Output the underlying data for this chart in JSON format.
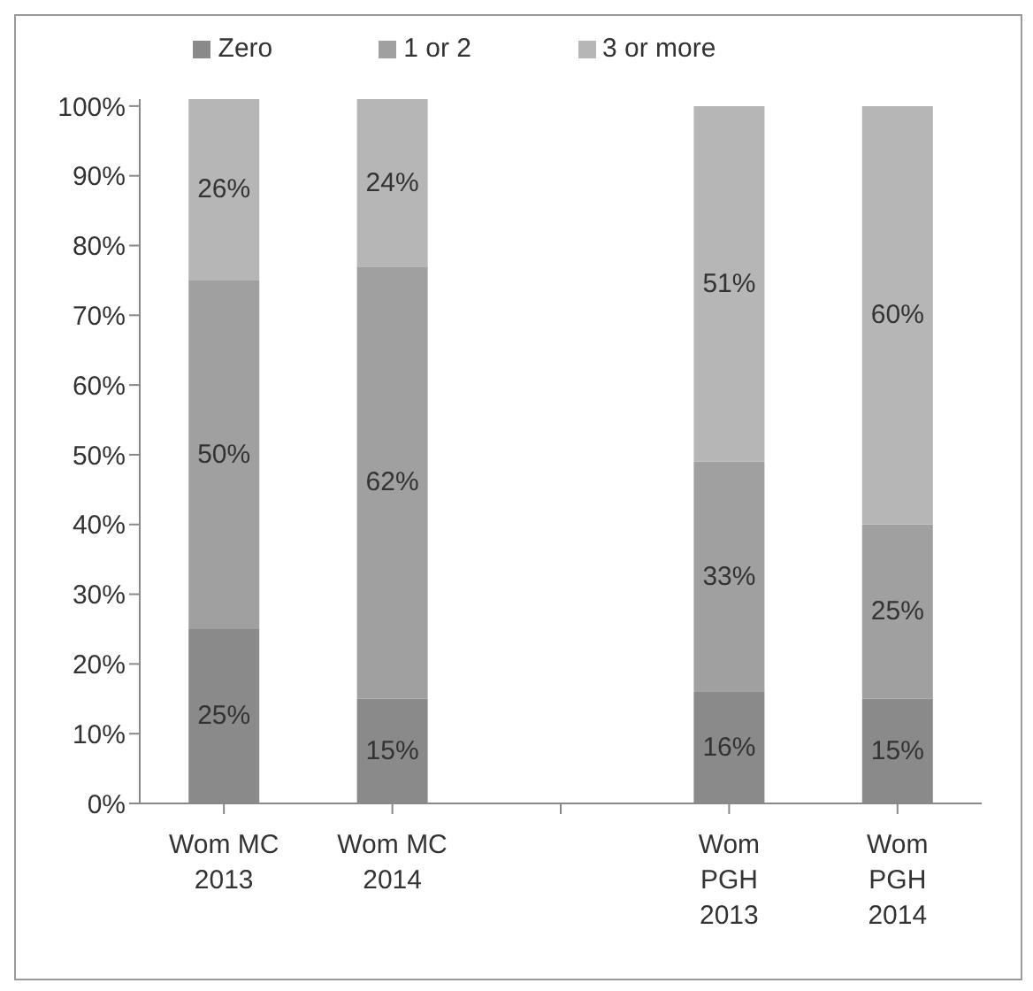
{
  "chart_data": {
    "type": "bar",
    "stacked": true,
    "categories": [
      "Wom MC 2013",
      "Wom MC 2014",
      null,
      "Wom PGH 2013",
      "Wom PGH 2014"
    ],
    "series": [
      {
        "name": "Zero",
        "color": "#8a8a8a",
        "values": [
          25,
          15,
          null,
          16,
          15
        ],
        "value_labels": [
          "25%",
          "15%",
          null,
          "16%",
          "15%"
        ]
      },
      {
        "name": "1 or 2",
        "color": "#a0a0a0",
        "values": [
          50,
          62,
          null,
          33,
          25
        ],
        "value_labels": [
          "50%",
          "62%",
          null,
          "33%",
          "25%"
        ]
      },
      {
        "name": "3 or more",
        "color": "#b6b6b6",
        "values": [
          26,
          24,
          null,
          51,
          60
        ],
        "value_labels": [
          "26%",
          "24%",
          null,
          "51%",
          "60%"
        ]
      }
    ],
    "ylim": [
      0,
      101
    ],
    "yticks": [
      {
        "value": 0,
        "label": "0%"
      },
      {
        "value": 10,
        "label": "10%"
      },
      {
        "value": 20,
        "label": "20%"
      },
      {
        "value": 30,
        "label": "30%"
      },
      {
        "value": 40,
        "label": "40%"
      },
      {
        "value": 50,
        "label": "50%"
      },
      {
        "value": 60,
        "label": "60%"
      },
      {
        "value": 70,
        "label": "70%"
      },
      {
        "value": 80,
        "label": "80%"
      },
      {
        "value": 90,
        "label": "90%"
      },
      {
        "value": 100,
        "label": "100%"
      }
    ],
    "grid": false,
    "legend": "top"
  }
}
